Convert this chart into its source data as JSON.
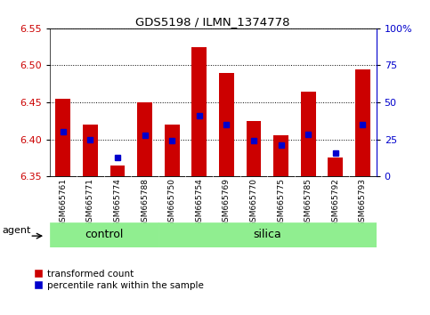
{
  "title": "GDS5198 / ILMN_1374778",
  "samples": [
    "GSM665761",
    "GSM665771",
    "GSM665774",
    "GSM665788",
    "GSM665750",
    "GSM665754",
    "GSM665769",
    "GSM665770",
    "GSM665775",
    "GSM665785",
    "GSM665792",
    "GSM665793"
  ],
  "groups": [
    "control",
    "control",
    "control",
    "control",
    "silica",
    "silica",
    "silica",
    "silica",
    "silica",
    "silica",
    "silica",
    "silica"
  ],
  "bar_values": [
    6.455,
    6.42,
    6.365,
    6.45,
    6.42,
    6.525,
    6.49,
    6.425,
    6.405,
    6.465,
    6.375,
    6.495
  ],
  "blue_values": [
    6.41,
    6.4,
    6.375,
    6.405,
    6.398,
    6.432,
    6.42,
    6.398,
    6.392,
    6.407,
    6.382,
    6.42
  ],
  "ymin": 6.35,
  "ymax": 6.55,
  "y_ticks": [
    6.35,
    6.4,
    6.45,
    6.5,
    6.55
  ],
  "right_yticks": [
    0,
    25,
    50,
    75,
    100
  ],
  "right_ytick_labels": [
    "0",
    "25",
    "50",
    "75",
    "100%"
  ],
  "bar_color": "#cc0000",
  "blue_color": "#0000cc",
  "control_color": "#90ee90",
  "silica_color": "#90ee90",
  "bar_width": 0.55,
  "agent_label": "agent",
  "group_label_control": "control",
  "group_label_silica": "silica",
  "legend_red": "transformed count",
  "legend_blue": "percentile rank within the sample",
  "control_count": 4,
  "n_samples": 12
}
